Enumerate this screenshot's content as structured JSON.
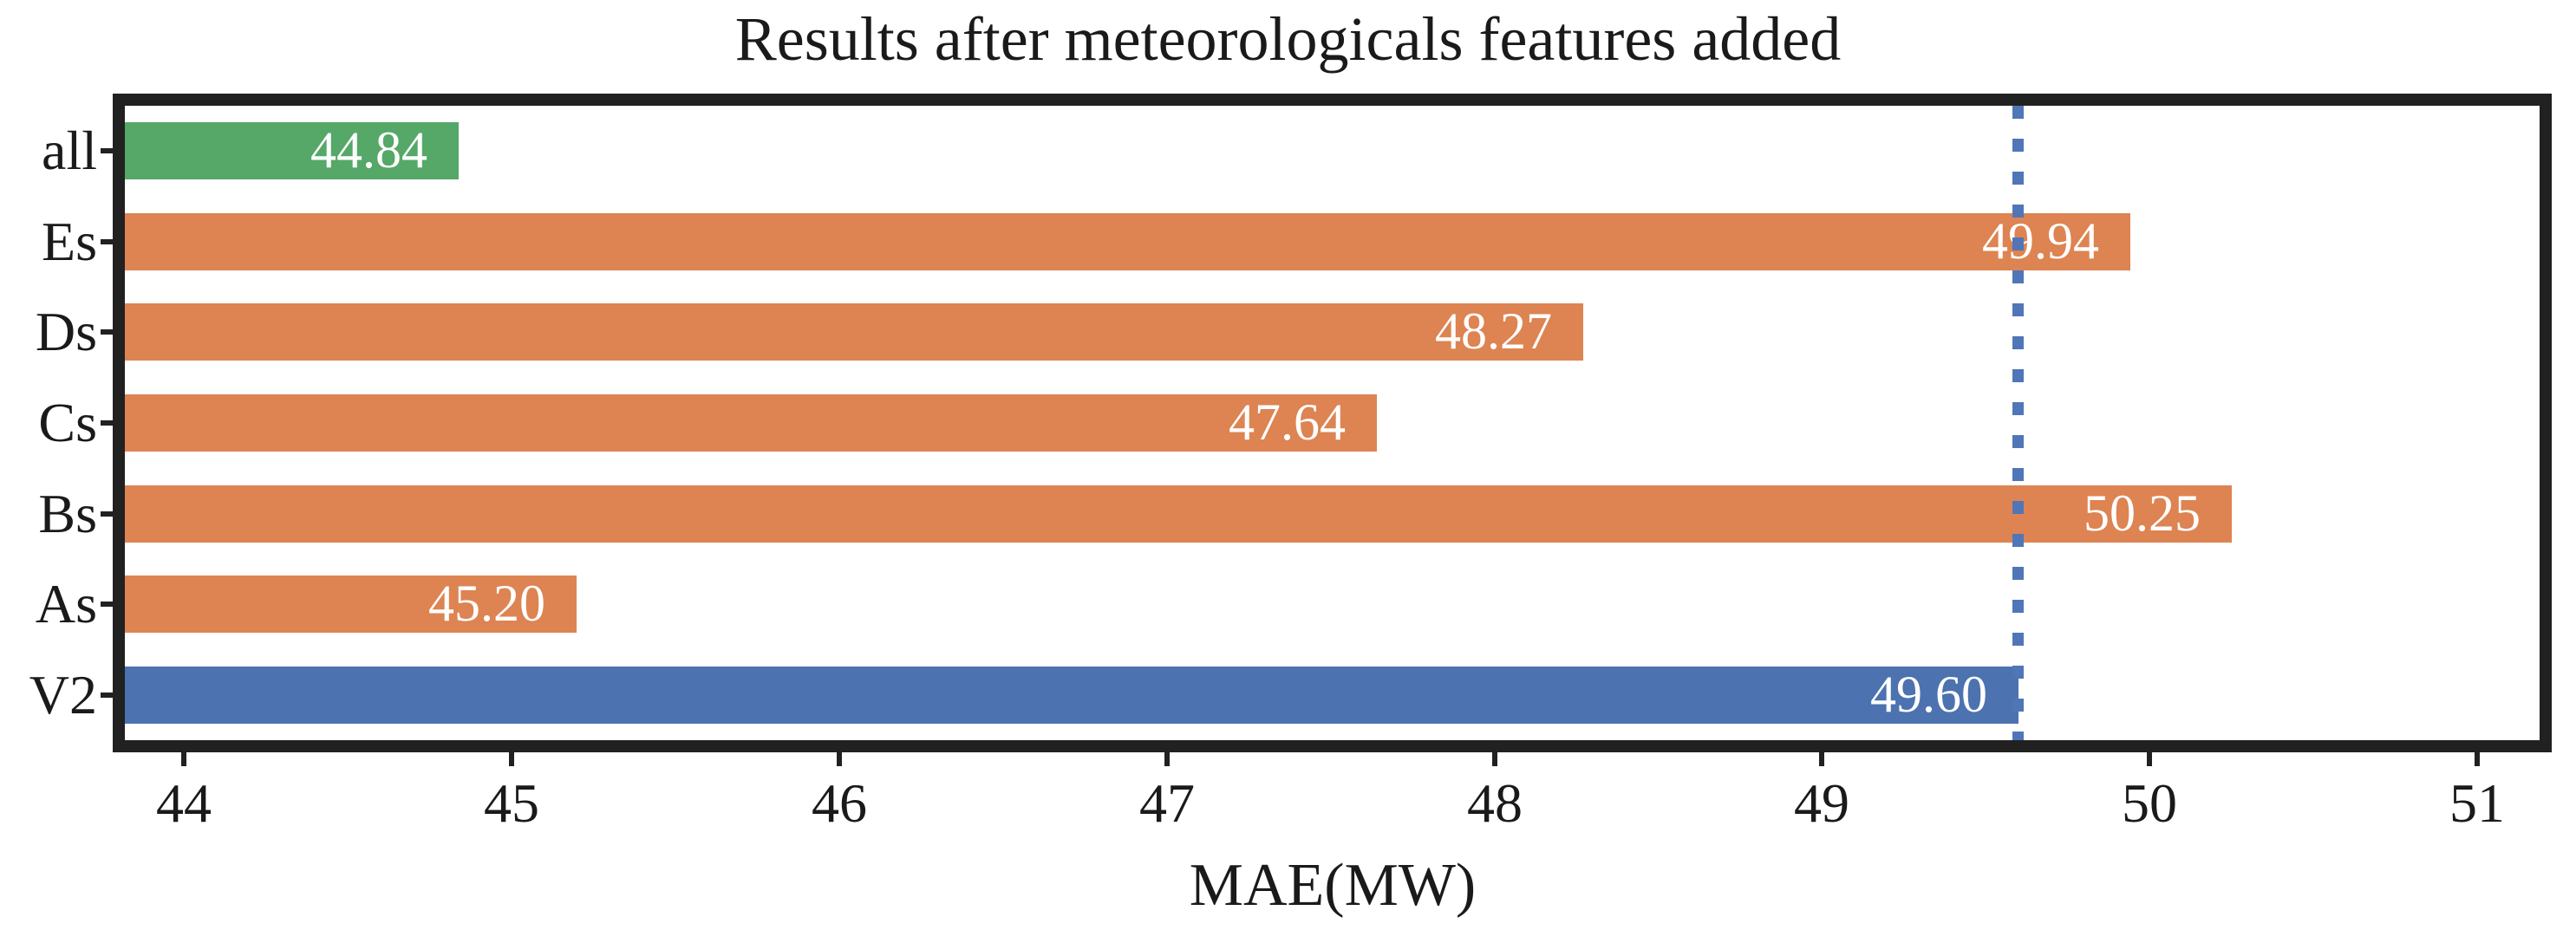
{
  "chart_data": {
    "type": "bar",
    "orientation": "horizontal",
    "title": "Results after meteorologicals features added",
    "xlabel": "MAE(MW)",
    "categories": [
      "all",
      "Es",
      "Ds",
      "Cs",
      "Bs",
      "As",
      "V2"
    ],
    "values": [
      44.84,
      49.94,
      48.27,
      47.64,
      50.25,
      45.2,
      49.6
    ],
    "bar_labels": [
      "44.84",
      "49.94",
      "48.27",
      "47.64",
      "50.25",
      "45.20",
      "49.60"
    ],
    "bar_colors": [
      "#55a868",
      "#dd8452",
      "#dd8452",
      "#dd8452",
      "#dd8452",
      "#dd8452",
      "#4c72b0"
    ],
    "value_label_color": "#ffffff",
    "xticks": [
      44,
      45,
      46,
      47,
      48,
      49,
      50,
      51
    ],
    "xtick_labels": [
      "44",
      "45",
      "46",
      "47",
      "48",
      "49",
      "50",
      "51"
    ],
    "xlim": [
      43.82,
      51.19
    ],
    "grid": false,
    "legend_position": "none",
    "reference_line": {
      "value": 49.6,
      "style": "dotted",
      "color": "#5076b8"
    },
    "colors": {
      "axis": "#212121",
      "text": "#1a1a1a",
      "background": "#ffffff",
      "green": "#55a868",
      "orange": "#dd8452",
      "blue": "#4c72b0"
    }
  }
}
